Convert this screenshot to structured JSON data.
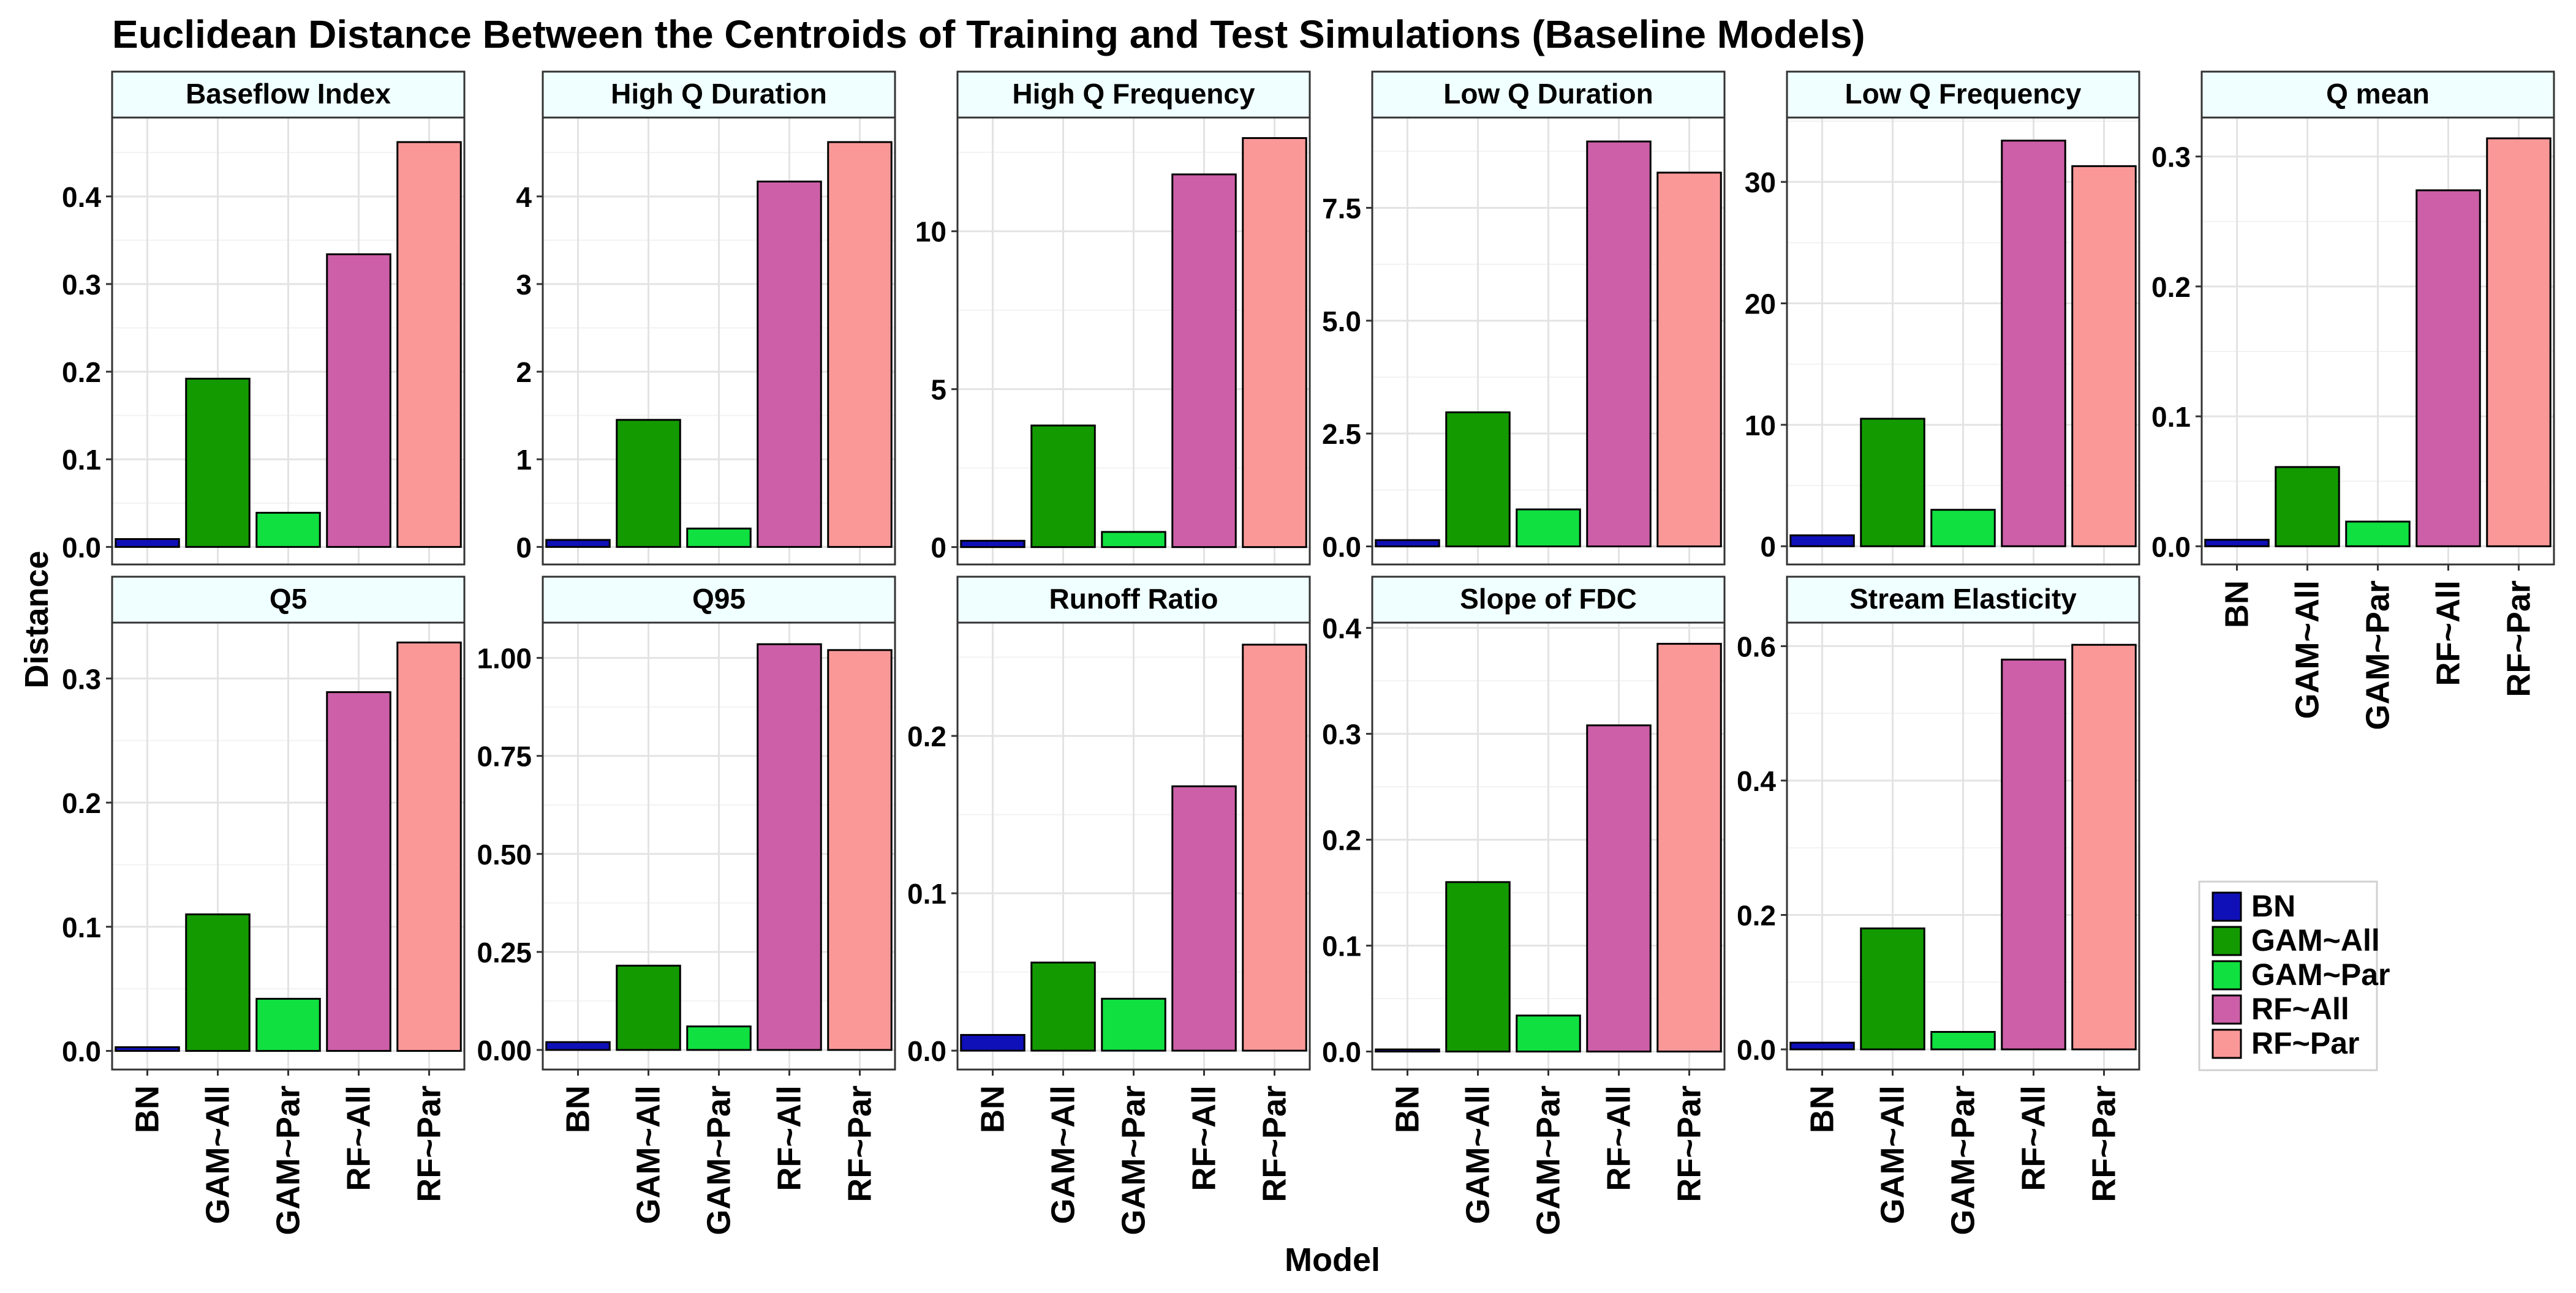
{
  "chart_data": {
    "type": "bar",
    "title": "Euclidean Distance Between the Centroids of Training and Test Simulations (Baseline Models)",
    "xlabel": "Model",
    "ylabel": "Distance",
    "categories": [
      "BN",
      "GAM~All",
      "GAM~Par",
      "RF~All",
      "RF~Par"
    ],
    "colors": [
      "#1010b8",
      "#139a00",
      "#10e040",
      "#cc5fa8",
      "#fa9898"
    ],
    "grid": true,
    "legend": {
      "position": "bottom-right",
      "entries": [
        "BN",
        "GAM~All",
        "GAM~Par",
        "RF~All",
        "RF~Par"
      ]
    },
    "panels": [
      {
        "name": "Baseflow Index",
        "values": [
          0.009,
          0.192,
          0.039,
          0.334,
          0.462
        ],
        "ylim": [
          -0.02,
          0.49
        ],
        "ticks": [
          0,
          0.1,
          0.2,
          0.3,
          0.4
        ],
        "tick_labels": [
          "0.0",
          "0.1",
          "0.2",
          "0.3",
          "0.4"
        ]
      },
      {
        "name": "High Q Duration",
        "values": [
          0.08,
          1.45,
          0.21,
          4.17,
          4.62
        ],
        "ylim": [
          -0.2,
          4.9
        ],
        "ticks": [
          0,
          1,
          2,
          3,
          4
        ],
        "tick_labels": [
          "0",
          "1",
          "2",
          "3",
          "4"
        ]
      },
      {
        "name": "High Q Frequency",
        "values": [
          0.2,
          3.85,
          0.48,
          11.8,
          12.95
        ],
        "ylim": [
          -0.55,
          13.6
        ],
        "ticks": [
          0,
          5,
          10
        ],
        "tick_labels": [
          "0",
          "5",
          "10"
        ]
      },
      {
        "name": "Low Q Duration",
        "values": [
          0.14,
          2.97,
          0.82,
          8.97,
          8.28
        ],
        "ylim": [
          -0.4,
          9.5
        ],
        "ticks": [
          0,
          2.5,
          5,
          7.5
        ],
        "tick_labels": [
          "0.0",
          "2.5",
          "5.0",
          "7.5"
        ]
      },
      {
        "name": "Low Q Frequency",
        "values": [
          0.9,
          10.5,
          3.0,
          33.4,
          31.3
        ],
        "ylim": [
          -1.5,
          35.3
        ],
        "ticks": [
          0,
          10,
          20,
          30
        ],
        "tick_labels": [
          "0",
          "10",
          "20",
          "30"
        ]
      },
      {
        "name": "Q mean",
        "values": [
          0.005,
          0.061,
          0.019,
          0.274,
          0.314
        ],
        "ylim": [
          -0.014,
          0.33
        ],
        "ticks": [
          0,
          0.1,
          0.2,
          0.3
        ],
        "tick_labels": [
          "0.0",
          "0.1",
          "0.2",
          "0.3"
        ]
      },
      {
        "name": "Q5",
        "values": [
          0.003,
          0.11,
          0.042,
          0.289,
          0.329
        ],
        "ylim": [
          -0.015,
          0.345
        ],
        "ticks": [
          0,
          0.1,
          0.2,
          0.3
        ],
        "tick_labels": [
          "0.0",
          "0.1",
          "0.2",
          "0.3"
        ]
      },
      {
        "name": "Q95",
        "values": [
          0.02,
          0.215,
          0.06,
          1.035,
          1.02
        ],
        "ylim": [
          -0.05,
          1.09
        ],
        "ticks": [
          0,
          0.25,
          0.5,
          0.75,
          1.0
        ],
        "tick_labels": [
          "0.00",
          "0.25",
          "0.50",
          "0.75",
          "1.00"
        ]
      },
      {
        "name": "Runoff Ratio",
        "values": [
          0.01,
          0.056,
          0.033,
          0.168,
          0.258
        ],
        "ylim": [
          -0.012,
          0.272
        ],
        "ticks": [
          0,
          0.1,
          0.2
        ],
        "tick_labels": [
          "0.0",
          "0.1",
          "0.2"
        ]
      },
      {
        "name": "Slope of FDC",
        "values": [
          0.002,
          0.16,
          0.034,
          0.308,
          0.385
        ],
        "ylim": [
          -0.017,
          0.405
        ],
        "ticks": [
          0,
          0.1,
          0.2,
          0.3,
          0.4
        ],
        "tick_labels": [
          "0.0",
          "0.1",
          "0.2",
          "0.3",
          "0.4"
        ]
      },
      {
        "name": "Stream Elasticity",
        "values": [
          0.01,
          0.18,
          0.026,
          0.58,
          0.602
        ],
        "ylim": [
          -0.03,
          0.635
        ],
        "ticks": [
          0,
          0.2,
          0.4,
          0.6
        ],
        "tick_labels": [
          "0.0",
          "0.2",
          "0.4",
          "0.6"
        ]
      }
    ]
  }
}
